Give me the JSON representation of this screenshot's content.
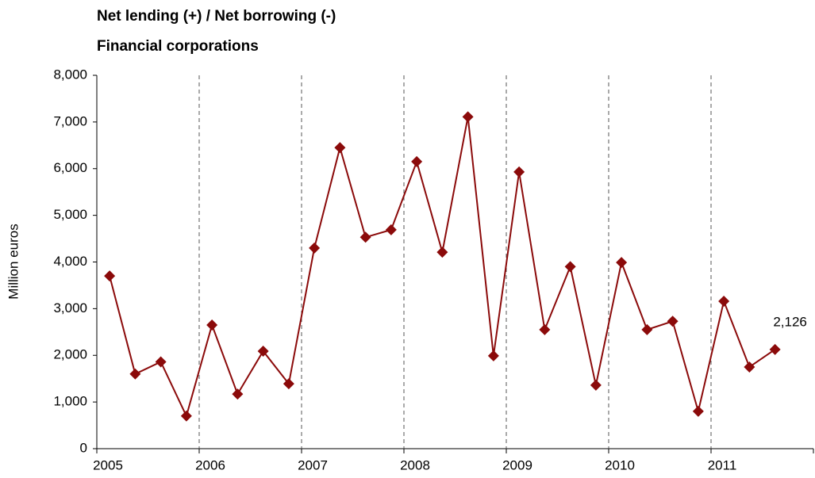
{
  "chart_data": {
    "type": "line",
    "title": [
      "Net lending (+) / Net borrowing (-)",
      "Financial corporations"
    ],
    "y_label": "Million euros",
    "categories": [
      "2005",
      null,
      null,
      null,
      "2006",
      null,
      null,
      null,
      "2007",
      null,
      null,
      null,
      "2008",
      null,
      null,
      null,
      "2009",
      null,
      null,
      null,
      "2010",
      null,
      null,
      null,
      "2011",
      null,
      null,
      null
    ],
    "values": [
      3700,
      1600,
      1860,
      700,
      2650,
      1170,
      2090,
      1390,
      4300,
      6450,
      4530,
      4690,
      6150,
      4210,
      7110,
      1990,
      5930,
      2550,
      3900,
      1360,
      3990,
      2550,
      2730,
      800,
      3160,
      1750,
      2126,
      null
    ],
    "value_labels": [
      null,
      null,
      null,
      null,
      null,
      null,
      null,
      null,
      null,
      null,
      null,
      null,
      null,
      null,
      null,
      null,
      null,
      null,
      null,
      null,
      null,
      null,
      null,
      null,
      null,
      null,
      "2,126",
      null
    ],
    "color": "#8b0a0a",
    "ylim": [
      0,
      8000
    ],
    "yticks": [
      0,
      {
        "value": 1000,
        "label": "1,000"
      },
      {
        "value": 2000,
        "label": "2,000"
      },
      {
        "value": 3000,
        "label": "3,000"
      },
      {
        "value": 4000,
        "label": "4,000"
      },
      {
        "value": 5000,
        "label": "5,000"
      },
      {
        "value": 6000,
        "label": "6,000"
      },
      {
        "value": 7000,
        "label": "7,000"
      },
      {
        "value": 8000,
        "label": "8,000"
      }
    ],
    "year_dividers": true
  }
}
